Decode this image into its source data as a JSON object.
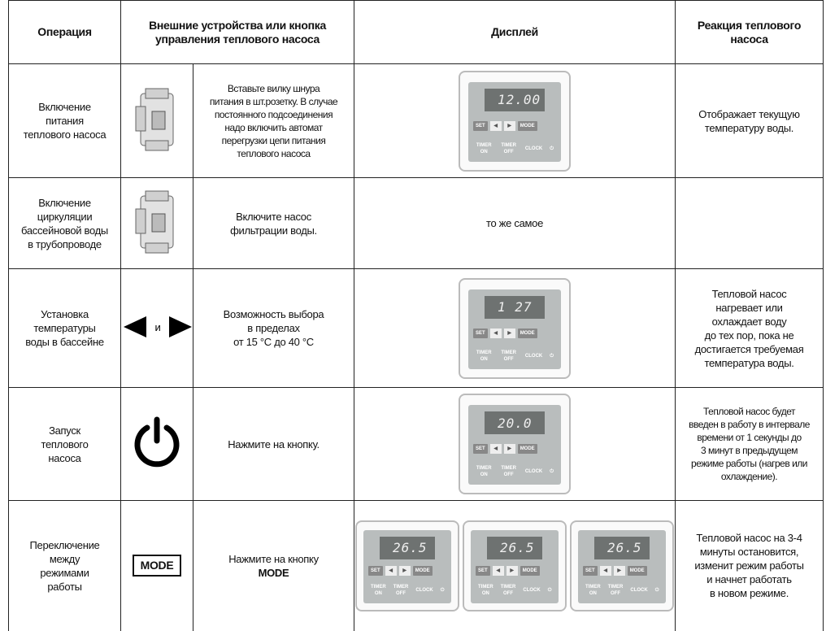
{
  "header": {
    "operation": "Операция",
    "control": [
      "Внешние устройства или кнопка",
      "управления теплового насоса"
    ],
    "display": "Дисплей",
    "reaction": [
      "Реакция теплового",
      "насоса"
    ]
  },
  "panel_labels": {
    "set": "SET",
    "mode": "MODE",
    "timer_on": "TIMER ON",
    "timer_off": "TIMER OFF",
    "clock": "CLOCK"
  },
  "rows": [
    {
      "operation": [
        "Включение",
        "питания",
        "теплового насоса"
      ],
      "action": [
        "Вставьте вилку шнура",
        "питания в шт.розетку. В случае",
        "постоянного подсоединения",
        "надо включить автомат",
        "перегрузки цепи питания",
        "теплового насоса"
      ],
      "display": [
        "12.00"
      ],
      "reaction": [
        "Отображает текущую",
        "температуру воды."
      ]
    },
    {
      "operation": [
        "Включение",
        "циркуляции",
        "бассейновой воды",
        "в трубопроводе"
      ],
      "action": [
        "Включите насос",
        "фильтрации воды."
      ],
      "display_text": "то же самое"
    },
    {
      "operation": [
        "Установка",
        "температуры",
        "воды в бассейне"
      ],
      "control": "и",
      "action": [
        "Возможность выбора",
        "в пределах",
        "от 15 °C до 40 °C"
      ],
      "display": [
        "1 27"
      ],
      "reaction": [
        "Тепловой насос",
        "нагревает или",
        "охлаждает воду",
        "до тех пор, пока не",
        "достигается требуемая",
        "температура воды."
      ]
    },
    {
      "operation": [
        "Запуск",
        "теплового",
        "насоса"
      ],
      "action": [
        "Нажмите на кнопку."
      ],
      "display": [
        "20.0"
      ],
      "reaction": [
        "Тепловой насос будет",
        "введен в работу в интервале",
        "времени от 1 секунды до",
        "3 минут в предыдущем",
        "режиме работы (нагрев или",
        "охлаждение)."
      ]
    },
    {
      "operation": [
        "Переключение",
        "между",
        "режимами",
        "работы"
      ],
      "control": "MODE",
      "action": [
        "Нажмите на кнопку",
        "MODE"
      ],
      "display": [
        "26.5",
        "26.5",
        "26.5"
      ],
      "reaction": [
        "Тепловой насос на 3-4",
        "минуты остановится,",
        "изменит режим работы",
        "и начнет работать",
        "в новом режиме."
      ]
    }
  ]
}
